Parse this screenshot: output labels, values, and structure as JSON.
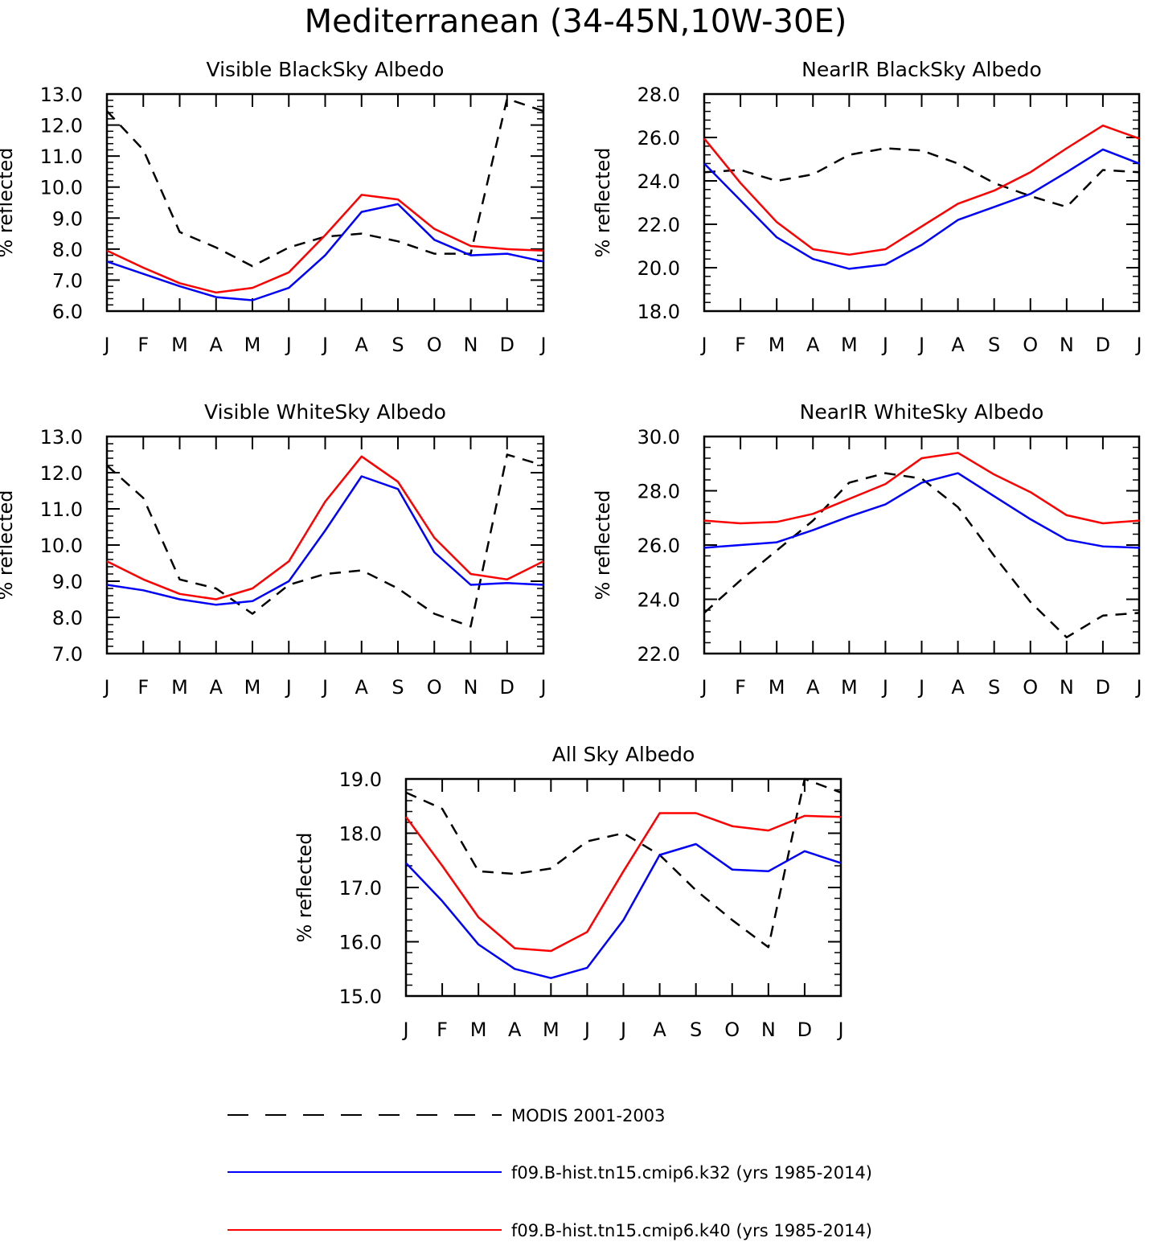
{
  "title": "Mediterranean (34-45N,10W-30E)",
  "colors": {
    "modis": "#000000",
    "k32": "#0000ff",
    "k40": "#ff0000"
  },
  "legend": [
    {
      "series": "modis",
      "label": "MODIS 2001-2003",
      "dash": true
    },
    {
      "series": "k32",
      "label": "f09.B-hist.tn15.cmip6.k32 (yrs 1985-2014)",
      "dash": false
    },
    {
      "series": "k40",
      "label": "f09.B-hist.tn15.cmip6.k40 (yrs 1985-2014)",
      "dash": false
    }
  ],
  "chart_data": [
    {
      "type": "line",
      "title": "Visible BlackSky Albedo",
      "ylabel": "% reflected",
      "xlabel": "",
      "categories": [
        "J",
        "F",
        "M",
        "A",
        "M",
        "J",
        "J",
        "A",
        "S",
        "O",
        "N",
        "D",
        "J"
      ],
      "ylim": [
        6.0,
        13.0
      ],
      "yticks": [
        "6.0",
        "7.0",
        "8.0",
        "9.0",
        "10.0",
        "11.0",
        "12.0",
        "13.0"
      ],
      "series": [
        {
          "name": "MODIS 2001-2003",
          "key": "modis",
          "values": [
            12.45,
            11.2,
            8.55,
            8.05,
            7.45,
            8.05,
            8.4,
            8.5,
            8.25,
            7.85,
            7.85,
            12.85,
            12.45
          ]
        },
        {
          "name": "f09.B-hist.tn15.cmip6.k32 (yrs 1985-2014)",
          "key": "k32",
          "values": [
            7.6,
            7.2,
            6.8,
            6.45,
            6.35,
            6.75,
            7.8,
            9.2,
            9.45,
            8.3,
            7.8,
            7.85,
            7.6
          ]
        },
        {
          "name": "f09.B-hist.tn15.cmip6.k40 (yrs 1985-2014)",
          "key": "k40",
          "values": [
            7.95,
            7.4,
            6.9,
            6.6,
            6.75,
            7.25,
            8.45,
            9.75,
            9.6,
            8.65,
            8.1,
            8.0,
            7.95
          ]
        }
      ]
    },
    {
      "type": "line",
      "title": "NearIR BlackSky Albedo",
      "ylabel": "% reflected",
      "xlabel": "",
      "categories": [
        "J",
        "F",
        "M",
        "A",
        "M",
        "J",
        "J",
        "A",
        "S",
        "O",
        "N",
        "D",
        "J"
      ],
      "ylim": [
        18.0,
        28.0
      ],
      "yticks": [
        "18.0",
        "20.0",
        "22.0",
        "24.0",
        "26.0",
        "28.0"
      ],
      "series": [
        {
          "name": "MODIS 2001-2003",
          "key": "modis",
          "values": [
            24.4,
            24.5,
            24.0,
            24.3,
            25.2,
            25.5,
            25.4,
            24.8,
            23.9,
            23.3,
            22.8,
            24.5,
            24.4
          ]
        },
        {
          "name": "f09.B-hist.tn15.cmip6.k32 (yrs 1985-2014)",
          "key": "k32",
          "values": [
            24.8,
            23.1,
            21.4,
            20.4,
            19.95,
            20.15,
            21.05,
            22.2,
            22.8,
            23.4,
            24.4,
            25.45,
            24.8
          ]
        },
        {
          "name": "f09.B-hist.tn15.cmip6.k40 (yrs 1985-2014)",
          "key": "k40",
          "values": [
            25.95,
            23.9,
            22.1,
            20.85,
            20.6,
            20.85,
            21.9,
            22.95,
            23.55,
            24.4,
            25.5,
            26.55,
            25.95
          ]
        }
      ]
    },
    {
      "type": "line",
      "title": "Visible WhiteSky Albedo",
      "ylabel": "% reflected",
      "xlabel": "",
      "categories": [
        "J",
        "F",
        "M",
        "A",
        "M",
        "J",
        "J",
        "A",
        "S",
        "O",
        "N",
        "D",
        "J"
      ],
      "ylim": [
        7.0,
        13.0
      ],
      "yticks": [
        "7.0",
        "8.0",
        "9.0",
        "10.0",
        "11.0",
        "12.0",
        "13.0"
      ],
      "series": [
        {
          "name": "MODIS 2001-2003",
          "key": "modis",
          "values": [
            12.2,
            11.3,
            9.05,
            8.8,
            8.1,
            8.9,
            9.2,
            9.3,
            8.8,
            8.1,
            7.75,
            12.5,
            12.2
          ]
        },
        {
          "name": "f09.B-hist.tn15.cmip6.k32 (yrs 1985-2014)",
          "key": "k32",
          "values": [
            8.9,
            8.75,
            8.5,
            8.35,
            8.45,
            9.0,
            10.4,
            11.9,
            11.55,
            9.8,
            8.9,
            8.95,
            8.9
          ]
        },
        {
          "name": "f09.B-hist.tn15.cmip6.k40 (yrs 1985-2014)",
          "key": "k40",
          "values": [
            9.55,
            9.05,
            8.65,
            8.5,
            8.8,
            9.55,
            11.2,
            12.45,
            11.75,
            10.2,
            9.2,
            9.05,
            9.55
          ]
        }
      ]
    },
    {
      "type": "line",
      "title": "NearIR WhiteSky Albedo",
      "ylabel": "% reflected",
      "xlabel": "",
      "categories": [
        "J",
        "F",
        "M",
        "A",
        "M",
        "J",
        "J",
        "A",
        "S",
        "O",
        "N",
        "D",
        "J"
      ],
      "ylim": [
        22.0,
        30.0
      ],
      "yticks": [
        "22.0",
        "24.0",
        "26.0",
        "28.0",
        "30.0"
      ],
      "series": [
        {
          "name": "MODIS 2001-2003",
          "key": "modis",
          "values": [
            23.5,
            24.7,
            25.8,
            26.9,
            28.3,
            28.65,
            28.45,
            27.4,
            25.6,
            23.9,
            22.6,
            23.4,
            23.5
          ]
        },
        {
          "name": "f09.B-hist.tn15.cmip6.k32 (yrs 1985-2014)",
          "key": "k32",
          "values": [
            25.9,
            26.0,
            26.1,
            26.55,
            27.05,
            27.5,
            28.3,
            28.65,
            27.8,
            26.95,
            26.2,
            25.95,
            25.9
          ]
        },
        {
          "name": "f09.B-hist.tn15.cmip6.k40 (yrs 1985-2014)",
          "key": "k40",
          "values": [
            26.9,
            26.8,
            26.85,
            27.15,
            27.7,
            28.25,
            29.2,
            29.4,
            28.6,
            27.95,
            27.1,
            26.8,
            26.9
          ]
        }
      ]
    },
    {
      "type": "line",
      "title": "All Sky Albedo",
      "ylabel": "% reflected",
      "xlabel": "",
      "categories": [
        "J",
        "F",
        "M",
        "A",
        "M",
        "J",
        "J",
        "A",
        "S",
        "O",
        "N",
        "D",
        "J"
      ],
      "ylim": [
        15.0,
        19.0
      ],
      "yticks": [
        "15.0",
        "16.0",
        "17.0",
        "18.0",
        "19.0"
      ],
      "series": [
        {
          "name": "MODIS 2001-2003",
          "key": "modis",
          "values": [
            18.75,
            18.45,
            17.3,
            17.25,
            17.35,
            17.85,
            18.0,
            17.6,
            16.95,
            16.4,
            15.9,
            19.0,
            18.75
          ]
        },
        {
          "name": "f09.B-hist.tn15.cmip6.k32 (yrs 1985-2014)",
          "key": "k32",
          "values": [
            17.45,
            16.75,
            15.95,
            15.5,
            15.33,
            15.52,
            16.4,
            17.6,
            17.8,
            17.33,
            17.3,
            17.67,
            17.45
          ]
        },
        {
          "name": "f09.B-hist.tn15.cmip6.k40 (yrs 1985-2014)",
          "key": "k40",
          "values": [
            18.3,
            17.4,
            16.45,
            15.88,
            15.83,
            16.18,
            17.3,
            18.37,
            18.37,
            18.13,
            18.05,
            18.32,
            18.3
          ]
        }
      ]
    }
  ]
}
